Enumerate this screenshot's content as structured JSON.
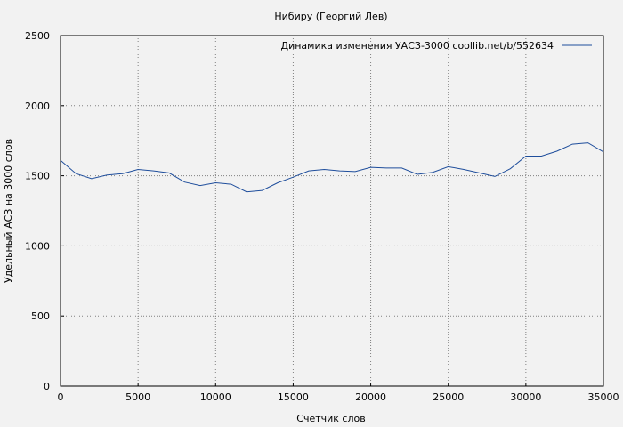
{
  "chart_data": {
    "type": "line",
    "title": "Нибиру (Георгий Лев)",
    "xlabel": "Счетчик слов",
    "ylabel": "Удельный АСЗ на 3000 слов",
    "xlim": [
      0,
      35000
    ],
    "ylim": [
      0,
      2500
    ],
    "xticks": [
      0,
      5000,
      10000,
      15000,
      20000,
      25000,
      30000,
      35000
    ],
    "yticks": [
      0,
      500,
      1000,
      1500,
      2000,
      2500
    ],
    "grid": true,
    "legend_position": "top-right",
    "series": [
      {
        "name": "Динамика изменения УАСЗ-3000  coollib.net/b/552634",
        "color": "#1f4e9c",
        "x": [
          0,
          1000,
          2000,
          3000,
          4000,
          5000,
          6000,
          7000,
          8000,
          9000,
          10000,
          11000,
          12000,
          13000,
          14000,
          15000,
          16000,
          17000,
          18000,
          19000,
          20000,
          21000,
          22000,
          23000,
          24000,
          25000,
          26000,
          27000,
          28000,
          29000,
          30000,
          31000,
          32000,
          33000,
          34000,
          35000
        ],
        "y": [
          1610,
          1515,
          1480,
          1505,
          1515,
          1545,
          1535,
          1520,
          1455,
          1430,
          1450,
          1440,
          1385,
          1395,
          1450,
          1490,
          1535,
          1545,
          1535,
          1530,
          1560,
          1555,
          1555,
          1510,
          1525,
          1565,
          1545,
          1520,
          1495,
          1550,
          1640,
          1640,
          1675,
          1725,
          1735,
          1670
        ]
      }
    ]
  }
}
